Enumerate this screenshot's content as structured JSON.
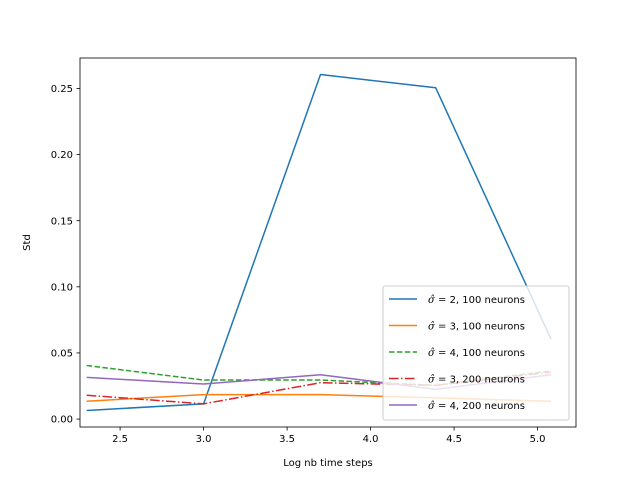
{
  "chart_data": {
    "type": "line",
    "title": "",
    "xlabel": "Log nb time  steps",
    "ylabel": "Std",
    "xlim": [
      2.26,
      5.23
    ],
    "ylim": [
      -0.006,
      0.273
    ],
    "xticks": [
      2.5,
      3.0,
      3.5,
      4.0,
      4.5,
      5.0
    ],
    "xtick_labels": [
      "2.5",
      "3.0",
      "3.5",
      "4.0",
      "4.5",
      "5.0"
    ],
    "yticks": [
      0.0,
      0.05,
      0.1,
      0.15,
      0.2,
      0.25
    ],
    "ytick_labels": [
      "0.00",
      "0.05",
      "0.10",
      "0.15",
      "0.20",
      "0.25"
    ],
    "grid": false,
    "legend_position": "lower-right",
    "x": [
      2.3,
      3.0,
      3.7,
      4.39,
      5.08
    ],
    "series": [
      {
        "name": "σ̂ =  2, 100 neurons",
        "name_prefix": "σ̂ = ",
        "name_suffix": " 2, 100 neurons",
        "color": "#1f77b4",
        "dash": "solid",
        "values": [
          0.0065,
          0.0115,
          0.2605,
          0.2505,
          0.0605
        ]
      },
      {
        "name": "σ̂ =  3, 100 neurons",
        "name_prefix": "σ̂ = ",
        "name_suffix": " 3, 100 neurons",
        "color": "#ff7f0e",
        "dash": "solid",
        "values": [
          0.0135,
          0.0185,
          0.0185,
          0.016,
          0.0135
        ]
      },
      {
        "name": "σ̂ =  4, 100 neurons",
        "name_prefix": "σ̂ = ",
        "name_suffix": " 4, 100 neurons",
        "color": "#2ca02c",
        "dash": "dashed",
        "values": [
          0.0405,
          0.0295,
          0.0295,
          0.0255,
          0.0365
        ]
      },
      {
        "name": "σ̂ =  3, 200 neurons",
        "name_prefix": "σ̂ = ",
        "name_suffix": " 3, 200 neurons",
        "color": "#d62728",
        "dash": "dashdot",
        "values": [
          0.018,
          0.0115,
          0.0275,
          0.0255,
          0.0355
        ]
      },
      {
        "name": "σ̂ =  4, 200 neurons",
        "name_prefix": "σ̂ = ",
        "name_suffix": " 4, 200 neurons",
        "color": "#9467bd",
        "dash": "solid",
        "values": [
          0.0315,
          0.0265,
          0.0335,
          0.0225,
          0.0335
        ]
      }
    ]
  }
}
